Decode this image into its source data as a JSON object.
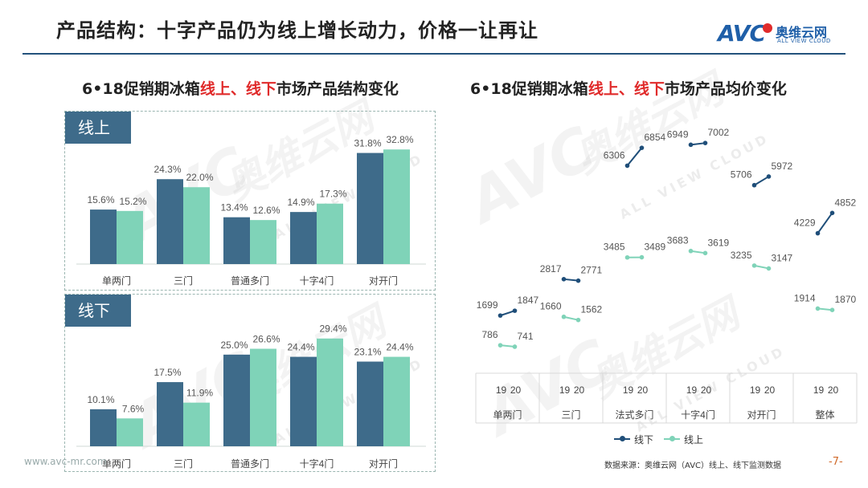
{
  "title": "产品结构：十字产品仍为线上增长动力，价格一让再让",
  "logo": {
    "brand": "AVC",
    "cn": "奥维云网",
    "en": "ALL VIEW CLOUD"
  },
  "colors": {
    "series_dark": "#3e6b8a",
    "series_light": "#7fd3b8",
    "accent_red": "#e02b2b",
    "header_rule": "#23527c"
  },
  "left_title": {
    "pre": "6•18促销期冰箱",
    "red": "线上、线下",
    "post": "市场产品结构变化"
  },
  "right_title": {
    "pre": "6•18促销期冰箱",
    "red": "线上、线下",
    "post": "市场产品均价变化"
  },
  "watermark": {
    "brand": "AVC",
    "cn": "奥维云网",
    "en": "ALL VIEW CLOUD"
  },
  "chart_data": [
    {
      "type": "bar",
      "panel_label": "线上",
      "categories": [
        "单两门",
        "三门",
        "普通多门",
        "十字4门",
        "对开门"
      ],
      "series": [
        {
          "name": "19",
          "values": [
            15.6,
            24.3,
            13.4,
            14.9,
            31.8
          ],
          "labels": [
            "15.6%",
            "24.3%",
            "13.4%",
            "14.9%",
            "31.8%"
          ]
        },
        {
          "name": "20",
          "values": [
            15.2,
            22.0,
            12.6,
            17.3,
            32.8
          ],
          "labels": [
            "15.2%",
            "22.0%",
            "12.6%",
            "17.3%",
            "32.8%"
          ]
        }
      ],
      "ylim": [
        0,
        34
      ],
      "grid": false,
      "legend": "none"
    },
    {
      "type": "bar",
      "panel_label": "线下",
      "categories": [
        "单两门",
        "三门",
        "普通多门",
        "十字4门",
        "对开门"
      ],
      "series": [
        {
          "name": "19",
          "values": [
            10.1,
            17.5,
            25.0,
            24.4,
            23.1
          ],
          "labels": [
            "10.1%",
            "17.5%",
            "25.0%",
            "24.4%",
            "23.1%"
          ]
        },
        {
          "name": "20",
          "values": [
            7.6,
            11.9,
            26.6,
            29.4,
            24.4
          ],
          "labels": [
            "7.6%",
            "11.9%",
            "26.6%",
            "29.4%",
            "24.4%"
          ]
        }
      ],
      "ylim": [
        0,
        30
      ],
      "grid": false,
      "legend": "none"
    },
    {
      "type": "line",
      "categories": [
        "单两门",
        "三门",
        "法式多门",
        "十字4门",
        "对开门",
        "整体"
      ],
      "period_labels": [
        "19",
        "20"
      ],
      "series": [
        {
          "name": "线下",
          "color": "#1f4e79",
          "values": [
            [
              1699,
              1847
            ],
            [
              2817,
              2771
            ],
            [
              6306,
              6854
            ],
            [
              6949,
              7002
            ],
            [
              5706,
              5972
            ],
            [
              4229,
              4852
            ]
          ]
        },
        {
          "name": "线上",
          "color": "#7fd3b8",
          "values": [
            [
              786,
              741
            ],
            [
              1660,
              1562
            ],
            [
              3485,
              3489
            ],
            [
              3683,
              3619
            ],
            [
              3235,
              3147
            ],
            [
              1914,
              1870
            ]
          ]
        }
      ],
      "ylim": [
        0,
        7500
      ],
      "grid": false,
      "legend": "bottom"
    }
  ],
  "footer": {
    "site": "www.avc-mr.com",
    "source": "数据来源：奥维云网（AVC）线上、线下监测数据",
    "page": "-7-"
  }
}
